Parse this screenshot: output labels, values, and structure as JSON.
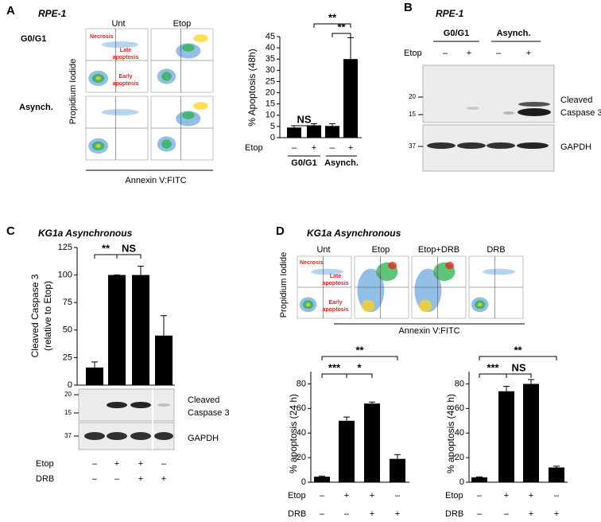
{
  "figure": {
    "panel_a": {
      "label": "A",
      "title": "RPE-1",
      "columns": [
        "Unt",
        "Etop"
      ],
      "rows": [
        "G0/G1",
        "Asynch."
      ],
      "y_label": "Propidium Iodide",
      "x_label": "Annexin V:FITC",
      "quadrants": {
        "necrosis": "Necrosis",
        "late": [
          "Late",
          "apoptosis"
        ],
        "early": [
          "Early",
          "apoptosis"
        ]
      }
    },
    "panel_b": {
      "label": "B",
      "title": "RPE-1",
      "groups": [
        "G0/G1",
        "Asynch."
      ],
      "row_label": "Etop",
      "signs": [
        "–",
        "+",
        "–",
        "+"
      ],
      "markers": [
        "20",
        "15",
        "37"
      ],
      "caspase": [
        "Cleaved",
        "Caspase 3"
      ],
      "gapdh": "GAPDH"
    },
    "panel_c": {
      "label": "C",
      "title": "KG1a Asynchronous",
      "markers": [
        "20",
        "15",
        "37"
      ],
      "caspase": [
        "Cleaved",
        "Caspase 3"
      ],
      "gapdh": "GAPDH"
    },
    "panel_d": {
      "label": "D",
      "title": "KG1a Asynchronous",
      "columns": [
        "Unt",
        "Etop",
        "Etop+DRB",
        "DRB"
      ],
      "y_label": "Propidium Iodide",
      "x_label": "Annexin V:FITC",
      "quadrants": {
        "necrosis": "Necrosis",
        "late": [
          "Late",
          "apoptosis"
        ],
        "early": [
          "Early",
          "apoptosis"
        ]
      }
    }
  },
  "chart_data": [
    {
      "type": "bar",
      "y_label": "% Apoptosis (48h)",
      "ylim": [
        0,
        45
      ],
      "yticks": [
        0,
        5,
        10,
        15,
        20,
        25,
        30,
        35,
        40,
        45
      ],
      "color": "#000000",
      "values": [
        4.5,
        5.5,
        5.2,
        35
      ],
      "errors": [
        0.8,
        0.7,
        1.0,
        9.5
      ],
      "annotations": [
        "**",
        "**",
        "NS"
      ],
      "rows": [
        {
          "label": "Etop",
          "values": [
            "–",
            "+",
            "–",
            "+"
          ]
        }
      ],
      "groups": [
        "G0/G1",
        "Asynch."
      ]
    },
    {
      "type": "bar",
      "y_label": [
        "Cleaved Caspase 3",
        "(relative to Etop)"
      ],
      "ylim": [
        0,
        125
      ],
      "yticks": [
        0,
        25,
        50,
        75,
        100,
        125
      ],
      "color": "#000000",
      "values": [
        16,
        100,
        100,
        45
      ],
      "errors": [
        5,
        0,
        8,
        18
      ],
      "annotations": [
        "**",
        "NS"
      ],
      "rows": [
        {
          "label": "Etop",
          "values": [
            "–",
            "+",
            "+",
            "–"
          ]
        },
        {
          "label": "DRB",
          "values": [
            "–",
            "–",
            "+",
            "+"
          ]
        }
      ]
    },
    {
      "type": "bar",
      "y_label": "% apoptosis (24 h)",
      "ylim": [
        0,
        90
      ],
      "yticks": [
        0,
        20,
        40,
        60,
        80
      ],
      "color": "#000000",
      "values": [
        4.5,
        50,
        64,
        19
      ],
      "errors": [
        0.5,
        3,
        1.2,
        3.5
      ],
      "annotations": [
        "**",
        "***",
        "*"
      ],
      "rows": [
        {
          "label": "Etop",
          "values": [
            "–",
            "+",
            "+",
            "–"
          ]
        },
        {
          "label": "DRB",
          "values": [
            "–",
            "–",
            "+",
            "+"
          ]
        }
      ]
    },
    {
      "type": "bar",
      "y_label": "% apoptosis (48 h)",
      "ylim": [
        0,
        90
      ],
      "yticks": [
        0,
        20,
        40,
        60,
        80
      ],
      "color": "#000000",
      "values": [
        4,
        74,
        80,
        12
      ],
      "errors": [
        0.4,
        4,
        3.5,
        1
      ],
      "annotations": [
        "**",
        "***",
        "NS"
      ],
      "rows": [
        {
          "label": "Etop",
          "values": [
            "–",
            "+",
            "+",
            "–"
          ]
        },
        {
          "label": "DRB",
          "values": [
            "–",
            "–",
            "+",
            "+"
          ]
        }
      ]
    }
  ]
}
